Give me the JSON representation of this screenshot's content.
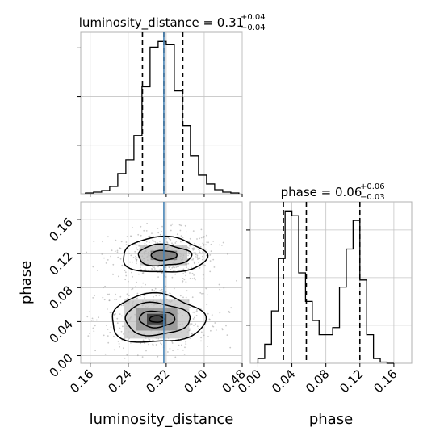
{
  "chart_data": [
    {
      "type": "histogram",
      "panel": "luminosity_distance marginal",
      "title": {
        "main": "luminosity_distance = 0.31",
        "plus": "+0.04",
        "minus": "−0.04"
      },
      "x_range": [
        0.14,
        0.48
      ],
      "bins": [
        0.15,
        0.167,
        0.184,
        0.201,
        0.218,
        0.235,
        0.252,
        0.269,
        0.286,
        0.303,
        0.32,
        0.337,
        0.354,
        0.371,
        0.388,
        0.405,
        0.422,
        0.439,
        0.456,
        0.473
      ],
      "counts": [
        1,
        2,
        4,
        9,
        25,
        42,
        72,
        132,
        181,
        188,
        184,
        127,
        84,
        47,
        23,
        12,
        5,
        2,
        1
      ],
      "quantile_lines": [
        0.27,
        0.315,
        0.355
      ],
      "truth": 0.315,
      "grid": true,
      "line_color": "#000000",
      "quantile_color": "#000000",
      "truth_color": "#4682b4"
    },
    {
      "type": "histogram",
      "panel": "phase marginal",
      "title": {
        "main": "phase = 0.06",
        "plus": "+0.06",
        "minus": "−0.03"
      },
      "x_range": [
        -0.009,
        0.181
      ],
      "x_ticks": [
        "0.00",
        "0.04",
        "0.08",
        "0.12",
        "0.16"
      ],
      "xlabel": "phase",
      "bins": [
        0.0,
        0.008,
        0.016,
        0.024,
        0.032,
        0.04,
        0.048,
        0.056,
        0.064,
        0.072,
        0.08,
        0.088,
        0.096,
        0.104,
        0.112,
        0.12,
        0.128,
        0.136,
        0.144,
        0.152,
        0.16
      ],
      "counts": [
        2,
        8,
        22,
        44,
        64,
        62,
        38,
        26,
        18,
        12,
        12,
        15,
        32,
        48,
        60,
        35,
        12,
        2,
        0.5,
        0
      ],
      "quantile_lines": [
        0.03,
        0.057,
        0.12
      ],
      "grid": true
    },
    {
      "type": "2d_density",
      "panel": "phase vs luminosity_distance",
      "x_range": [
        0.14,
        0.48
      ],
      "y_range": [
        -0.009,
        0.181
      ],
      "x_ticks": [
        "0.16",
        "0.24",
        "0.32",
        "0.40",
        "0.48"
      ],
      "y_ticks": [
        "0.00",
        "0.04",
        "0.08",
        "0.12",
        "0.16"
      ],
      "xlabel": "luminosity_distance",
      "ylabel": "phase",
      "truth_x": 0.315,
      "modes": [
        {
          "center": [
            0.315,
            0.118
          ],
          "spread": [
            0.045,
            0.012
          ]
        },
        {
          "center": [
            0.3,
            0.043
          ],
          "spread": [
            0.052,
            0.016
          ]
        }
      ],
      "grid": true
    }
  ]
}
